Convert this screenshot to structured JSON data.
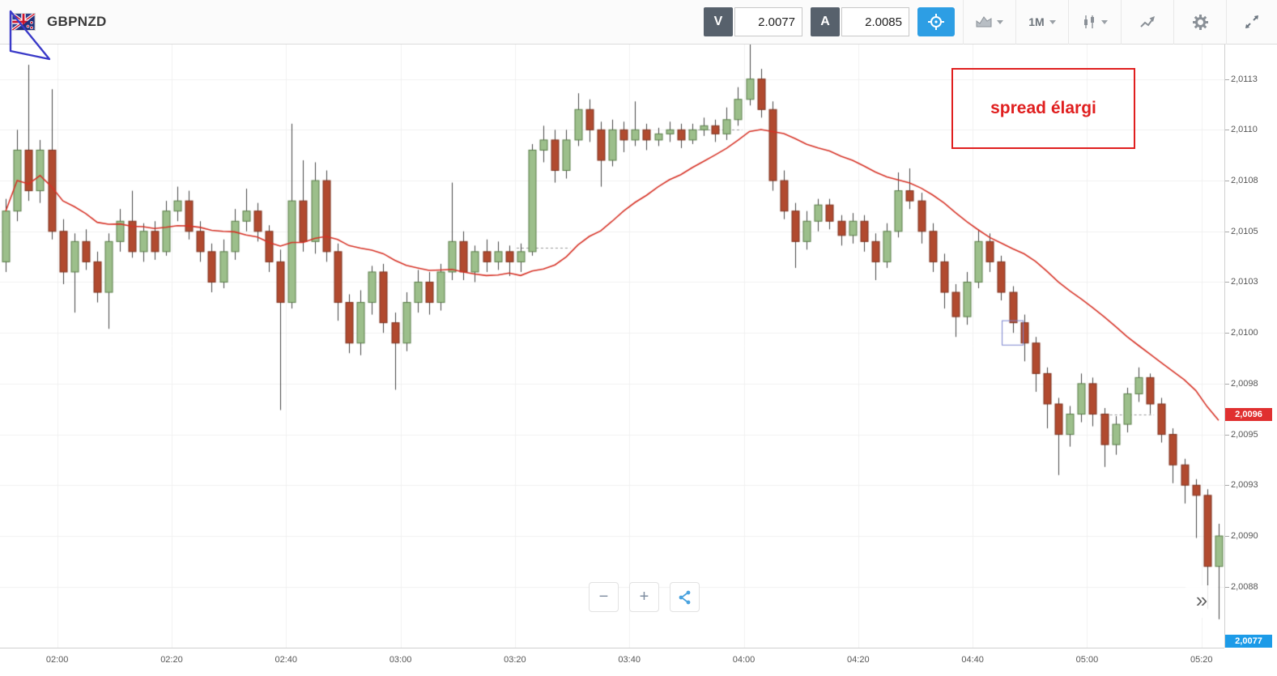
{
  "header": {
    "symbol": "GBPNZD",
    "sell": {
      "label": "V",
      "value": "2.0077"
    },
    "buy": {
      "label": "A",
      "value": "2.0085"
    },
    "timeframe": "1M",
    "icons": [
      "gbp-nzd-flag",
      "crosshair",
      "area-chart",
      "candlesticks",
      "trend-indicator",
      "gear",
      "expand-arrows"
    ]
  },
  "annotation": {
    "text": "spread élargi",
    "color": "#e01f1f"
  },
  "drawings": {
    "triangle_color": "#3a3ac8"
  },
  "controls": {
    "zoom_out": "−",
    "zoom_in": "+",
    "share_icon": "share-nodes",
    "fast_forward": "»"
  },
  "chart_data": {
    "type": "candlestick",
    "symbol": "GBPNZD",
    "timeframe": "1M",
    "start_time": "01:50",
    "minutes_per_candle": 2,
    "price_base": 2.0,
    "pip": 0.0001,
    "note": "candles are [open,high,low,close] in pips above 2.00000 (price = 2.0 + v/10000)",
    "candles": [
      [
        103.5,
        106.6,
        103.0,
        106.0
      ],
      [
        106.0,
        110.0,
        105.5,
        109.0
      ],
      [
        109.0,
        113.2,
        106.5,
        107.0
      ],
      [
        107.0,
        109.5,
        106.4,
        109.0
      ],
      [
        109.0,
        112.0,
        104.6,
        105.0
      ],
      [
        105.0,
        105.6,
        102.4,
        103.0
      ],
      [
        103.0,
        104.9,
        101.0,
        104.5
      ],
      [
        104.5,
        105.1,
        103.1,
        103.5
      ],
      [
        103.5,
        104.0,
        101.5,
        102.0
      ],
      [
        102.0,
        104.9,
        100.2,
        104.5
      ],
      [
        104.5,
        106.1,
        104.0,
        105.5
      ],
      [
        105.5,
        107.0,
        103.7,
        104.0
      ],
      [
        104.0,
        105.4,
        103.5,
        105.0
      ],
      [
        105.0,
        105.5,
        103.6,
        104.0
      ],
      [
        104.0,
        106.5,
        103.8,
        106.0
      ],
      [
        106.0,
        107.2,
        105.5,
        106.5
      ],
      [
        106.5,
        107.0,
        104.6,
        105.0
      ],
      [
        105.0,
        105.5,
        103.5,
        104.0
      ],
      [
        104.0,
        104.4,
        102.0,
        102.5
      ],
      [
        102.5,
        104.6,
        102.2,
        104.0
      ],
      [
        104.0,
        106.1,
        103.6,
        105.5
      ],
      [
        105.5,
        107.1,
        105.0,
        106.0
      ],
      [
        106.0,
        106.4,
        104.5,
        105.0
      ],
      [
        105.0,
        105.3,
        103.0,
        103.5
      ],
      [
        103.5,
        104.1,
        96.2,
        101.5
      ],
      [
        101.5,
        110.3,
        101.2,
        106.5
      ],
      [
        106.5,
        108.5,
        104.0,
        104.5
      ],
      [
        104.5,
        108.4,
        103.9,
        107.5
      ],
      [
        107.5,
        108.0,
        103.5,
        104.0
      ],
      [
        104.0,
        104.4,
        100.6,
        101.5
      ],
      [
        101.5,
        101.9,
        99.0,
        99.5
      ],
      [
        99.5,
        102.1,
        98.9,
        101.5
      ],
      [
        101.5,
        103.3,
        100.9,
        103.0
      ],
      [
        103.0,
        103.4,
        100.0,
        100.5
      ],
      [
        100.5,
        101.0,
        97.2,
        99.5
      ],
      [
        99.5,
        102.0,
        99.1,
        101.5
      ],
      [
        101.5,
        103.1,
        101.0,
        102.5
      ],
      [
        102.5,
        103.0,
        100.9,
        101.5
      ],
      [
        101.5,
        103.4,
        101.1,
        103.0
      ],
      [
        103.0,
        107.4,
        102.6,
        104.5
      ],
      [
        104.5,
        105.0,
        102.6,
        103.0
      ],
      [
        103.0,
        104.3,
        102.5,
        104.0
      ],
      [
        104.0,
        104.6,
        103.0,
        103.5
      ],
      [
        103.5,
        104.5,
        103.1,
        104.0
      ],
      [
        104.0,
        104.3,
        102.8,
        103.5
      ],
      [
        103.5,
        104.4,
        103.0,
        104.0
      ],
      [
        104.0,
        109.3,
        103.8,
        109.0
      ],
      [
        109.0,
        110.2,
        108.4,
        109.5
      ],
      [
        109.5,
        110.0,
        107.4,
        108.0
      ],
      [
        108.0,
        110.0,
        107.6,
        109.5
      ],
      [
        109.5,
        111.8,
        109.2,
        111.0
      ],
      [
        111.0,
        111.5,
        109.4,
        110.0
      ],
      [
        110.0,
        110.4,
        107.2,
        108.5
      ],
      [
        108.5,
        110.5,
        108.2,
        110.0
      ],
      [
        110.0,
        110.4,
        108.9,
        109.5
      ],
      [
        109.5,
        111.4,
        109.2,
        110.0
      ],
      [
        110.0,
        110.3,
        109.0,
        109.5
      ],
      [
        109.5,
        110.1,
        109.2,
        109.8
      ],
      [
        109.8,
        110.4,
        109.4,
        110.0
      ],
      [
        110.0,
        110.3,
        109.1,
        109.5
      ],
      [
        109.5,
        110.3,
        109.3,
        110.0
      ],
      [
        110.0,
        110.6,
        109.7,
        110.2
      ],
      [
        110.2,
        110.5,
        109.4,
        109.8
      ],
      [
        109.8,
        111.1,
        109.5,
        110.5
      ],
      [
        110.5,
        112.1,
        110.2,
        111.5
      ],
      [
        111.5,
        114.2,
        111.2,
        112.5
      ],
      [
        112.5,
        113.0,
        110.6,
        111.0
      ],
      [
        111.0,
        111.4,
        107.0,
        107.5
      ],
      [
        107.5,
        108.0,
        105.6,
        106.0
      ],
      [
        106.0,
        106.4,
        103.2,
        104.5
      ],
      [
        104.5,
        106.0,
        104.1,
        105.5
      ],
      [
        105.5,
        106.6,
        105.0,
        106.3
      ],
      [
        106.3,
        106.6,
        105.1,
        105.5
      ],
      [
        105.5,
        105.8,
        104.3,
        104.8
      ],
      [
        104.8,
        105.9,
        104.4,
        105.5
      ],
      [
        105.5,
        105.8,
        104.0,
        104.5
      ],
      [
        104.5,
        104.9,
        102.6,
        103.5
      ],
      [
        103.5,
        105.4,
        103.2,
        105.0
      ],
      [
        105.0,
        107.9,
        104.7,
        107.0
      ],
      [
        107.0,
        108.1,
        106.1,
        106.5
      ],
      [
        106.5,
        106.9,
        104.4,
        105.0
      ],
      [
        105.0,
        105.4,
        103.0,
        103.5
      ],
      [
        103.5,
        103.9,
        101.2,
        102.0
      ],
      [
        102.0,
        102.4,
        99.8,
        100.8
      ],
      [
        100.8,
        103.0,
        100.4,
        102.5
      ],
      [
        102.5,
        105.1,
        102.2,
        104.5
      ],
      [
        104.5,
        104.9,
        103.0,
        103.5
      ],
      [
        103.5,
        103.8,
        101.6,
        102.0
      ],
      [
        102.0,
        102.3,
        100.0,
        100.5
      ],
      [
        100.5,
        100.9,
        98.6,
        99.5
      ],
      [
        99.5,
        99.8,
        97.1,
        98.0
      ],
      [
        98.0,
        98.3,
        95.3,
        96.5
      ],
      [
        96.5,
        96.8,
        93.0,
        95.0
      ],
      [
        95.0,
        96.4,
        94.4,
        96.0
      ],
      [
        96.0,
        98.0,
        95.6,
        97.5
      ],
      [
        97.5,
        97.8,
        95.4,
        96.0
      ],
      [
        96.0,
        96.3,
        93.4,
        94.5
      ],
      [
        94.5,
        95.9,
        94.0,
        95.5
      ],
      [
        95.5,
        97.3,
        95.1,
        97.0
      ],
      [
        97.0,
        98.3,
        96.6,
        97.8
      ],
      [
        97.8,
        98.0,
        96.0,
        96.5
      ],
      [
        96.5,
        96.8,
        94.6,
        95.0
      ],
      [
        95.0,
        95.3,
        92.6,
        93.5
      ],
      [
        93.5,
        93.8,
        91.6,
        92.5
      ],
      [
        92.5,
        92.8,
        89.9,
        92.0
      ],
      [
        92.0,
        92.3,
        86.4,
        88.5
      ],
      [
        88.5,
        90.6,
        85.9,
        90.0
      ]
    ],
    "x_axis": {
      "labels": [
        {
          "t": "02:00",
          "min": 10
        },
        {
          "t": "02:20",
          "min": 30
        },
        {
          "t": "02:40",
          "min": 50
        },
        {
          "t": "03:00",
          "min": 70
        },
        {
          "t": "03:20",
          "min": 90
        },
        {
          "t": "03:40",
          "min": 110
        },
        {
          "t": "04:00",
          "min": 130
        },
        {
          "t": "04:20",
          "min": 150
        },
        {
          "t": "04:40",
          "min": 170
        },
        {
          "t": "05:00",
          "min": 190
        },
        {
          "t": "05:20",
          "min": 210
        }
      ]
    },
    "y_axis": {
      "top": 2.01142,
      "bottom": 2.00845,
      "gridlines": [
        {
          "label": "2,0113",
          "value": 2.01125
        },
        {
          "label": "2,0110",
          "value": 2.011
        },
        {
          "label": "2,0108",
          "value": 2.01075
        },
        {
          "label": "2,0105",
          "value": 2.0105
        },
        {
          "label": "2,0103",
          "value": 2.01025
        },
        {
          "label": "2,0100",
          "value": 2.01
        },
        {
          "label": "2,0098",
          "value": 2.00975
        },
        {
          "label": "2,0095",
          "value": 2.0095
        },
        {
          "label": "2,0093",
          "value": 2.00925
        },
        {
          "label": "2,0090",
          "value": 2.009
        },
        {
          "label": "2,0088",
          "value": 2.00875
        }
      ]
    },
    "moving_average": {
      "type": "SMA",
      "window_candles": 20,
      "color": "#d63226"
    },
    "dashed_levels": [
      {
        "start": 45,
        "end": 49,
        "price": 2.01042
      },
      {
        "start": 60,
        "end": 64,
        "price": 2.011
      },
      {
        "start": 96,
        "end": 100,
        "price": 2.0096
      }
    ],
    "highlight_box": {
      "candle_index": 88,
      "price_top": 2.01006,
      "price_bottom": 2.00994,
      "color": "#7b84cf"
    },
    "price_tags": [
      {
        "label": "2,0096",
        "value": 2.0096,
        "color": "#e03030",
        "clamped": "none"
      },
      {
        "label": "2,0077",
        "value": 2.0077,
        "color": "#1c9be8",
        "clamped": "bottom"
      }
    ],
    "colors": {
      "up_fill": "#9cbf8b",
      "up_stroke": "#5a7d49",
      "down_fill": "#b14a2f",
      "down_stroke": "#7d3320",
      "wick": "#444444",
      "grid": "#f0f0f0"
    }
  }
}
